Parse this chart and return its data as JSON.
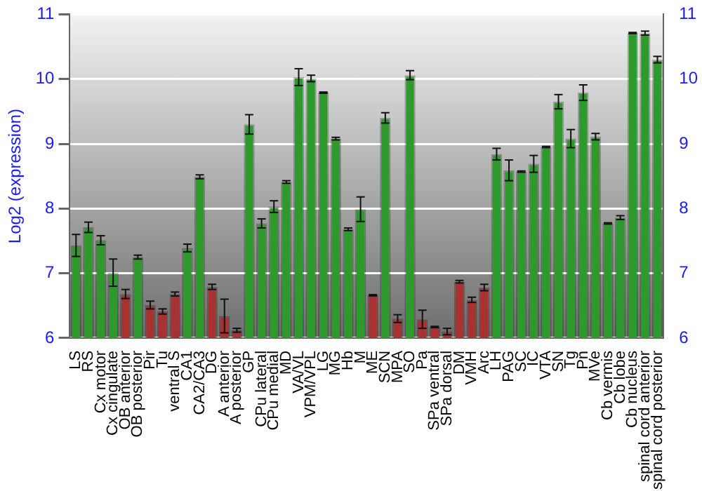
{
  "chart_data": {
    "type": "bar",
    "ylabel": "Log2 (expression)",
    "categories": [
      "LS",
      "RS",
      "Cx motor",
      "Cx cingulate",
      "OB anterior",
      "OB posterior",
      "Pir",
      "Tu",
      "ventral S",
      "CA1",
      "CA2/CA3",
      "DG",
      "A anterior",
      "A posterior",
      "GP",
      "CPu lateral",
      "CPu medial",
      "MD",
      "VA/VL",
      "VPM/VPL",
      "LG",
      "MG",
      "Hb",
      "M",
      "ME",
      "SCN",
      "MPA",
      "SO",
      "Pa",
      "SPa ventral",
      "SPa dorsal",
      "DM",
      "VMH",
      "Arc",
      "LH",
      "PAG",
      "SC",
      "IC",
      "VTA",
      "SN",
      "Tg",
      "Pn",
      "MVe",
      "Cb vermis",
      "Cb lobe",
      "Cb nucleus",
      "spinal cord anterior",
      "spinal cord posterior"
    ],
    "values": [
      7.43,
      7.71,
      7.51,
      7.01,
      6.68,
      7.25,
      6.51,
      6.41,
      6.68,
      7.39,
      8.49,
      6.79,
      6.34,
      6.12,
      9.3,
      7.77,
      8.03,
      8.41,
      10.03,
      10.01,
      9.79,
      9.08,
      7.68,
      7.99,
      6.66,
      9.4,
      6.3,
      10.06,
      6.29,
      6.17,
      6.1,
      6.87,
      6.59,
      6.78,
      8.84,
      8.59,
      8.57,
      8.69,
      8.95,
      9.65,
      9.08,
      9.79,
      9.11,
      7.77,
      7.86,
      10.71,
      10.71,
      10.3
    ],
    "errors": [
      0.17,
      0.08,
      0.07,
      0.21,
      0.07,
      0.03,
      0.06,
      0.04,
      0.03,
      0.06,
      0.03,
      0.04,
      0.26,
      0.03,
      0.15,
      0.07,
      0.09,
      0.02,
      0.13,
      0.05,
      0.01,
      0.02,
      0.02,
      0.19,
      0.01,
      0.08,
      0.06,
      0.07,
      0.14,
      0.01,
      0.05,
      0.02,
      0.04,
      0.05,
      0.09,
      0.16,
      0.01,
      0.13,
      0.01,
      0.11,
      0.14,
      0.12,
      0.05,
      0.01,
      0.03,
      0.01,
      0.03,
      0.05
    ],
    "colors": [
      "#2e9a2e",
      "#2e9a2e",
      "#2e9a2e",
      "#2e9a2e",
      "#a83232",
      "#2e9a2e",
      "#a83232",
      "#a83232",
      "#a83232",
      "#2e9a2e",
      "#2e9a2e",
      "#a83232",
      "#a83232",
      "#a83232",
      "#2e9a2e",
      "#2e9a2e",
      "#2e9a2e",
      "#2e9a2e",
      "#2e9a2e",
      "#2e9a2e",
      "#2e9a2e",
      "#2e9a2e",
      "#2e9a2e",
      "#2e9a2e",
      "#a83232",
      "#2e9a2e",
      "#a83232",
      "#2e9a2e",
      "#a83232",
      "#a83232",
      "#a83232",
      "#a83232",
      "#a83232",
      "#a83232",
      "#2e9a2e",
      "#2e9a2e",
      "#2e9a2e",
      "#2e9a2e",
      "#2e9a2e",
      "#2e9a2e",
      "#2e9a2e",
      "#2e9a2e",
      "#2e9a2e",
      "#2e9a2e",
      "#2e9a2e",
      "#2e9a2e",
      "#2e9a2e",
      "#2e9a2e"
    ],
    "ylim": [
      6,
      11
    ],
    "yticks": [
      6,
      7,
      8,
      9,
      10,
      11
    ],
    "y2lim": [
      6,
      11
    ],
    "y2ticks": [
      6,
      7,
      8,
      9,
      10,
      11
    ],
    "grid": "y",
    "legend": false
  }
}
